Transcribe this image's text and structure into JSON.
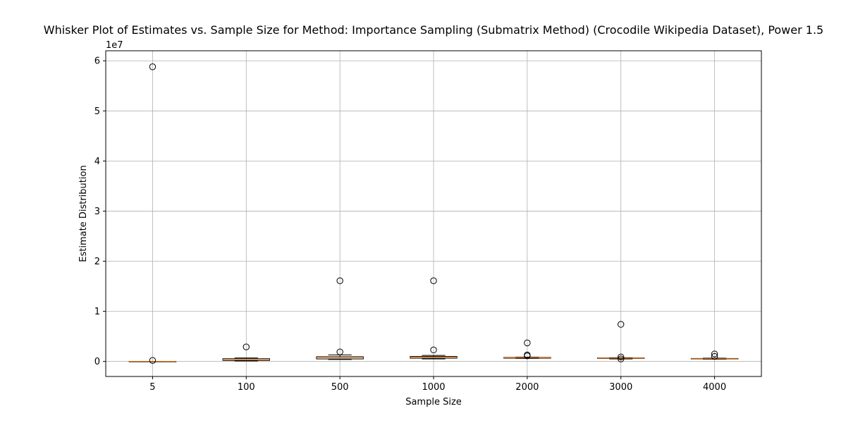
{
  "chart_data": {
    "type": "box",
    "title": "Whisker Plot of Estimates vs. Sample Size for Method: Importance Sampling (Submatrix Method) (Crocodile Wikipedia Dataset), Power 1.5",
    "xlabel": "Sample Size",
    "ylabel": "Estimate Distribution",
    "y_offset_label": "1e7",
    "ylim": [
      -3000000,
      62000000
    ],
    "yticks": [
      0,
      10000000,
      20000000,
      30000000,
      40000000,
      50000000,
      60000000
    ],
    "ytick_labels": [
      "0",
      "1",
      "2",
      "3",
      "4",
      "5",
      "6"
    ],
    "grid": true,
    "colors": {
      "median": "#ff7f0e",
      "box": "#000000",
      "grid": "#b0b0b0"
    },
    "categories": [
      "5",
      "100",
      "500",
      "1000",
      "2000",
      "3000",
      "4000"
    ],
    "boxes": [
      {
        "label": "5",
        "whislo": 0,
        "q1": 0,
        "med": 0,
        "q3": 0,
        "whishi": 0,
        "fliers": [
          200000,
          58800000
        ]
      },
      {
        "label": "100",
        "whislo": 100000,
        "q1": 200000,
        "med": 350000,
        "q3": 550000,
        "whishi": 700000,
        "fliers": [
          2900000
        ]
      },
      {
        "label": "500",
        "whislo": 400000,
        "q1": 500000,
        "med": 750000,
        "q3": 950000,
        "whishi": 1300000,
        "fliers": [
          1900000,
          16100000
        ]
      },
      {
        "label": "1000",
        "whislo": 500000,
        "q1": 650000,
        "med": 850000,
        "q3": 1000000,
        "whishi": 1200000,
        "fliers": [
          2300000,
          16100000
        ]
      },
      {
        "label": "2000",
        "whislo": 600000,
        "q1": 650000,
        "med": 750000,
        "q3": 800000,
        "whishi": 850000,
        "fliers": [
          1100000,
          1300000,
          3700000
        ]
      },
      {
        "label": "3000",
        "whislo": 500000,
        "q1": 600000,
        "med": 650000,
        "q3": 700000,
        "whishi": 750000,
        "fliers": [
          500000,
          900000,
          7400000
        ]
      },
      {
        "label": "4000",
        "whislo": 450000,
        "q1": 500000,
        "med": 550000,
        "q3": 600000,
        "whishi": 650000,
        "fliers": [
          1000000,
          1500000
        ]
      }
    ]
  }
}
